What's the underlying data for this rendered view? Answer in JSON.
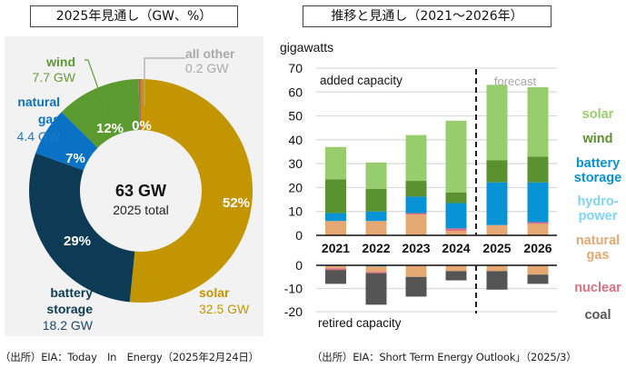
{
  "left_panel": {
    "title": "2025年見通し（GW、%）",
    "source": "（出所）EIA：Today　In　Energy（2025年2月24日）"
  },
  "right_panel": {
    "title": "推移と見通し（2021～2026年）",
    "source": "（出所）EIA：Short Term Energy Outlook」（2025/3）"
  },
  "colors": {
    "solar_donut": "#c39500",
    "battery_donut": "#0d3a55",
    "gas_donut": "#0a72c4",
    "wind_donut": "#5b9a2f",
    "other_donut": "#c0605a",
    "solar": "#98cd6e",
    "wind": "#5a9230",
    "battery": "#0893d6",
    "hydro": "#7fd4f7",
    "gas": "#e5a872",
    "nuclear": "#e06f80",
    "coal": "#555555"
  },
  "chart_data": [
    {
      "type": "pie",
      "variant": "donut",
      "title": "2025年見通し（GW、%）",
      "center_value": "63 GW",
      "center_label": "2025 total",
      "slices": [
        {
          "name": "solar",
          "value": 32.5,
          "value_label": "32.5 GW",
          "percent": 52,
          "percent_label": "52%"
        },
        {
          "name": "battery storage",
          "name_lines": [
            "battery",
            "storage"
          ],
          "value": 18.2,
          "value_label": "18.2 GW",
          "percent": 29,
          "percent_label": "29%"
        },
        {
          "name": "natural gas",
          "name_lines": [
            "natural",
            "gas"
          ],
          "value": 4.4,
          "value_label": "4.4 GW",
          "percent": 7,
          "percent_label": "7%"
        },
        {
          "name": "wind",
          "value": 7.7,
          "value_label": "7.7 GW",
          "percent": 12,
          "percent_label": "12%"
        },
        {
          "name": "all other",
          "value": 0.2,
          "value_label": "0.2 GW",
          "percent": 0,
          "percent_label": "0%"
        }
      ]
    },
    {
      "type": "bar",
      "variant": "stacked",
      "title": "推移と見通し（2021～2026年）",
      "ylabel": "gigawatts",
      "categories": [
        "2021",
        "2022",
        "2023",
        "2024",
        "2025",
        "2026"
      ],
      "forecast_start": "2025",
      "forecast_label": "forecast",
      "added": {
        "label": "added capacity",
        "ylim": [
          0,
          70
        ],
        "yticks": [
          0,
          10,
          20,
          30,
          40,
          50,
          60,
          70
        ],
        "series": [
          {
            "name": "natural gas",
            "key": "gas",
            "values": [
              6.0,
              6.0,
              8.7,
              1.8,
              4.3,
              4.8
            ]
          },
          {
            "name": "nuclear",
            "key": "nuclear",
            "values": [
              0,
              0,
              0.6,
              1.1,
              0,
              0.7
            ]
          },
          {
            "name": "hydropower",
            "key": "hydro",
            "values": [
              0,
              0,
              0,
              0,
              0,
              0
            ]
          },
          {
            "name": "battery storage",
            "key": "battery",
            "values": [
              3.3,
              4.0,
              6.9,
              10.6,
              17.9,
              16.7
            ]
          },
          {
            "name": "wind",
            "key": "wind",
            "values": [
              14.2,
              9.5,
              6.6,
              4.5,
              9.3,
              10.8
            ]
          },
          {
            "name": "solar",
            "key": "solar",
            "values": [
              13.5,
              11.0,
              19.2,
              30.0,
              31.5,
              29.0
            ]
          }
        ]
      },
      "retired": {
        "label": "retired capacity",
        "ylim": [
          -20,
          0
        ],
        "yticks": [
          0,
          -10,
          -20
        ],
        "series": [
          {
            "name": "battery storage",
            "key": "battery",
            "values": [
              -0.3,
              -0.5,
              0,
              0,
              0,
              0
            ]
          },
          {
            "name": "natural gas",
            "key": "gas",
            "values": [
              -1.0,
              -2.3,
              -5.0,
              -2.5,
              -2.5,
              -4.0
            ]
          },
          {
            "name": "nuclear",
            "key": "nuclear",
            "values": [
              -0.7,
              -0.6,
              0,
              0,
              0,
              0
            ]
          },
          {
            "name": "coal",
            "key": "coal",
            "values": [
              -6.0,
              -13.6,
              -8.5,
              -4.0,
              -8.0,
              -4.0
            ]
          }
        ]
      },
      "legend": [
        {
          "lines": [
            "solar"
          ],
          "key": "solar"
        },
        {
          "lines": [
            "wind"
          ],
          "key": "wind"
        },
        {
          "lines": [
            "battery",
            "storage"
          ],
          "key": "battery"
        },
        {
          "lines": [
            "hydro-",
            "power"
          ],
          "key": "hydro"
        },
        {
          "lines": [
            "natural",
            "gas"
          ],
          "key": "gas"
        },
        {
          "lines": [
            "nuclear"
          ],
          "key": "nuclear"
        },
        {
          "lines": [
            "coal"
          ],
          "key": "coal"
        }
      ],
      "legend_position": "right"
    }
  ]
}
